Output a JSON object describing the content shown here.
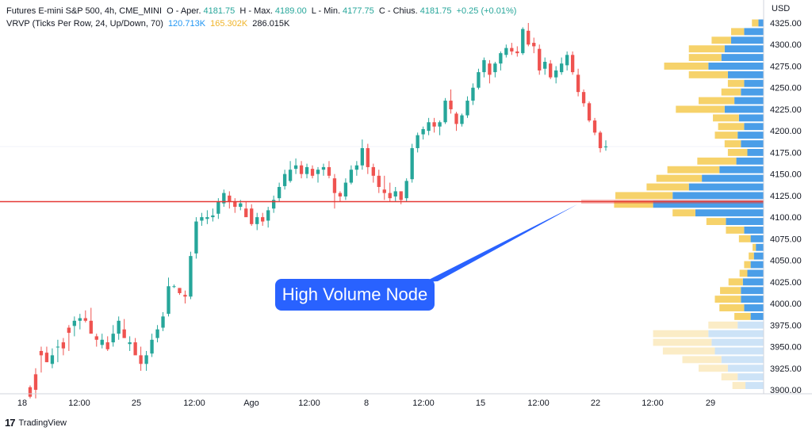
{
  "legend": {
    "symbol": "Futures E-mini S&P 500, 4h, CME_MINI",
    "open_label": "O - Aper.",
    "open_value": "4181.75",
    "high_label": "H - Max.",
    "high_value": "4189.00",
    "low_label": "L - Min.",
    "low_value": "4177.75",
    "close_label": "C - Chius.",
    "close_value": "4181.75",
    "change": "+0.25 (+0.01%)",
    "vrvp_label": "VRVP (Ticks Per Row, 24, Up/Down, 70)",
    "vrvp_up": "120.713K",
    "vrvp_down": "165.302K",
    "vrvp_total": "286.015K"
  },
  "currency_label": "USD",
  "callout_text": "High Volume Node",
  "brand": {
    "logo": "17",
    "name": "TradingView"
  },
  "colors": {
    "up_candle": "#26a69a",
    "down_candle": "#ef5350",
    "vp_up": "#4a9ee8",
    "vp_down": "#f6d26a",
    "vp_up_faded": "#cde3f7",
    "vp_down_faded": "#fbecc6",
    "hvn_line": "#e53935",
    "callout": "#2962ff"
  },
  "chart_data": {
    "type": "candlestick",
    "y_axis_ticks": [
      "4325.00",
      "4300.00",
      "4275.00",
      "4250.00",
      "4225.00",
      "4200.00",
      "4175.00",
      "4150.00",
      "4125.00",
      "4100.00",
      "4075.00",
      "4050.00",
      "4025.00",
      "4000.00",
      "3975.00",
      "3950.00",
      "3925.00",
      "3900.00"
    ],
    "ylim": [
      3895,
      4335
    ],
    "x_axis_ticks": [
      "18",
      "12:00",
      "25",
      "12:00",
      "Ago",
      "12:00",
      "8",
      "12:00",
      "15",
      "12:00",
      "22",
      "12:00",
      "29"
    ],
    "high_volume_node_price": 4118,
    "candles": [
      [
        3905,
        3890,
        3903,
        3892
      ],
      [
        3925,
        3890,
        3918,
        3900
      ],
      [
        3950,
        3920,
        3945,
        3940
      ],
      [
        3950,
        3932,
        3943,
        3932
      ],
      [
        3948,
        3925,
        3930,
        3940
      ],
      [
        3958,
        3932,
        3950,
        3950
      ],
      [
        3960,
        3940,
        3955,
        3948
      ],
      [
        3975,
        3945,
        3972,
        3966
      ],
      [
        3985,
        3962,
        3974,
        3980
      ],
      [
        3988,
        3970,
        3980,
        3983
      ],
      [
        3992,
        3978,
        3983,
        3980
      ],
      [
        3995,
        3975,
        3980,
        3965
      ],
      [
        3965,
        3950,
        3962,
        3958
      ],
      [
        3965,
        3948,
        3952,
        3958
      ],
      [
        3962,
        3945,
        3955,
        3947
      ],
      [
        3975,
        3950,
        3955,
        3965
      ],
      [
        3985,
        3958,
        3965,
        3980
      ],
      [
        3982,
        3960,
        3970,
        3960
      ],
      [
        3962,
        3945,
        3953,
        3955
      ],
      [
        3960,
        3945,
        3955,
        3940
      ],
      [
        3950,
        3922,
        3940,
        3930
      ],
      [
        3945,
        3922,
        3930,
        3940
      ],
      [
        3965,
        3938,
        3942,
        3958
      ],
      [
        3975,
        3955,
        3960,
        3970
      ],
      [
        3990,
        3968,
        3972,
        3985
      ],
      [
        4030,
        3985,
        3988,
        4020
      ],
      [
        4022,
        4018,
        4020,
        4020
      ],
      [
        4018,
        4010,
        4018,
        4012
      ],
      [
        4015,
        4000,
        4010,
        4008
      ],
      [
        4060,
        4005,
        4008,
        4055
      ],
      [
        4100,
        4052,
        4058,
        4095
      ],
      [
        4105,
        4090,
        4096,
        4100
      ],
      [
        4108,
        4092,
        4098,
        4100
      ],
      [
        4110,
        4095,
        4100,
        4102
      ],
      [
        4122,
        4098,
        4104,
        4118
      ],
      [
        4132,
        4112,
        4116,
        4128
      ],
      [
        4130,
        4110,
        4125,
        4118
      ],
      [
        4122,
        4105,
        4118,
        4112
      ],
      [
        4120,
        4108,
        4112,
        4116
      ],
      [
        4118,
        4108,
        4110,
        4100
      ],
      [
        4115,
        4090,
        4110,
        4092
      ],
      [
        4105,
        4085,
        4092,
        4100
      ],
      [
        4105,
        4090,
        4100,
        4095
      ],
      [
        4112,
        4088,
        4096,
        4108
      ],
      [
        4125,
        4105,
        4110,
        4120
      ],
      [
        4140,
        4118,
        4122,
        4135
      ],
      [
        4155,
        4132,
        4136,
        4150
      ],
      [
        4165,
        4140,
        4142,
        4155
      ],
      [
        4168,
        4150,
        4156,
        4160
      ],
      [
        4165,
        4145,
        4160,
        4150
      ],
      [
        4162,
        4145,
        4150,
        4158
      ],
      [
        4160,
        4145,
        4156,
        4148
      ],
      [
        4158,
        4140,
        4150,
        4155
      ],
      [
        4162,
        4148,
        4155,
        4158
      ],
      [
        4165,
        4145,
        4158,
        4148
      ],
      [
        4150,
        4110,
        4145,
        4128
      ],
      [
        4130,
        4118,
        4128,
        4124
      ],
      [
        4145,
        4120,
        4124,
        4140
      ],
      [
        4160,
        4138,
        4140,
        4155
      ],
      [
        4165,
        4148,
        4155,
        4160
      ],
      [
        4190,
        4155,
        4160,
        4180
      ],
      [
        4185,
        4150,
        4180,
        4158
      ],
      [
        4162,
        4140,
        4158,
        4148
      ],
      [
        4155,
        4128,
        4148,
        4135
      ],
      [
        4148,
        4120,
        4132,
        4128
      ],
      [
        4140,
        4118,
        4128,
        4122
      ],
      [
        4135,
        4118,
        4124,
        4130
      ],
      [
        4130,
        4115,
        4130,
        4120
      ],
      [
        4145,
        4118,
        4122,
        4142
      ],
      [
        4185,
        4140,
        4144,
        4180
      ],
      [
        4198,
        4175,
        4180,
        4195
      ],
      [
        4205,
        4190,
        4196,
        4202
      ],
      [
        4215,
        4195,
        4200,
        4210
      ],
      [
        4215,
        4198,
        4210,
        4205
      ],
      [
        4212,
        4195,
        4205,
        4210
      ],
      [
        4238,
        4208,
        4210,
        4235
      ],
      [
        4248,
        4220,
        4235,
        4225
      ],
      [
        4222,
        4200,
        4220,
        4208
      ],
      [
        4220,
        4205,
        4208,
        4218
      ],
      [
        4240,
        4215,
        4218,
        4235
      ],
      [
        4255,
        4230,
        4235,
        4250
      ],
      [
        4272,
        4248,
        4250,
        4268
      ],
      [
        4285,
        4262,
        4268,
        4282
      ],
      [
        4282,
        4255,
        4278,
        4265
      ],
      [
        4280,
        4262,
        4268,
        4278
      ],
      [
        4292,
        4270,
        4278,
        4290
      ],
      [
        4300,
        4285,
        4288,
        4296
      ],
      [
        4302,
        4288,
        4296,
        4292
      ],
      [
        4298,
        4286,
        4292,
        4290
      ],
      [
        4320,
        4288,
        4290,
        4318
      ],
      [
        4325,
        4298,
        4316,
        4300
      ],
      [
        4308,
        4290,
        4302,
        4298
      ],
      [
        4300,
        4265,
        4295,
        4270
      ],
      [
        4285,
        4265,
        4272,
        4280
      ],
      [
        4282,
        4260,
        4278,
        4262
      ],
      [
        4275,
        4255,
        4262,
        4270
      ],
      [
        4285,
        4265,
        4268,
        4278
      ],
      [
        4292,
        4270,
        4276,
        4288
      ],
      [
        4292,
        4265,
        4288,
        4268
      ],
      [
        4272,
        4240,
        4265,
        4245
      ],
      [
        4248,
        4228,
        4245,
        4232
      ],
      [
        4234,
        4210,
        4232,
        4212
      ],
      [
        4215,
        4195,
        4212,
        4198
      ],
      [
        4200,
        4175,
        4198,
        4180
      ],
      [
        4189,
        4177,
        4181,
        4182
      ]
    ],
    "volume_profile": [
      {
        "price_low": 4320,
        "price_high": 4330,
        "up": 8,
        "down": 10
      },
      {
        "price_low": 4310,
        "price_high": 4320,
        "up": 30,
        "down": 20
      },
      {
        "price_low": 4300,
        "price_high": 4310,
        "up": 50,
        "down": 30
      },
      {
        "price_low": 4290,
        "price_high": 4300,
        "up": 60,
        "down": 55
      },
      {
        "price_low": 4280,
        "price_high": 4290,
        "up": 65,
        "down": 50
      },
      {
        "price_low": 4270,
        "price_high": 4280,
        "up": 85,
        "down": 68
      },
      {
        "price_low": 4260,
        "price_high": 4270,
        "up": 55,
        "down": 60
      },
      {
        "price_low": 4250,
        "price_high": 4260,
        "up": 30,
        "down": 25
      },
      {
        "price_low": 4240,
        "price_high": 4250,
        "up": 35,
        "down": 30
      },
      {
        "price_low": 4230,
        "price_high": 4240,
        "up": 45,
        "down": 55
      },
      {
        "price_low": 4220,
        "price_high": 4230,
        "up": 60,
        "down": 75
      },
      {
        "price_low": 4210,
        "price_high": 4220,
        "up": 38,
        "down": 40
      },
      {
        "price_low": 4200,
        "price_high": 4210,
        "up": 30,
        "down": 40
      },
      {
        "price_low": 4190,
        "price_high": 4200,
        "up": 40,
        "down": 35
      },
      {
        "price_low": 4180,
        "price_high": 4190,
        "up": 35,
        "down": 25
      },
      {
        "price_low": 4170,
        "price_high": 4180,
        "up": 25,
        "down": 30
      },
      {
        "price_low": 4160,
        "price_high": 4170,
        "up": 42,
        "down": 60
      },
      {
        "price_low": 4150,
        "price_high": 4160,
        "up": 68,
        "down": 80
      },
      {
        "price_low": 4140,
        "price_high": 4150,
        "up": 95,
        "down": 70
      },
      {
        "price_low": 4130,
        "price_high": 4140,
        "up": 115,
        "down": 65
      },
      {
        "price_low": 4120,
        "price_high": 4130,
        "up": 140,
        "down": 88
      },
      {
        "price_low": 4110,
        "price_high": 4120,
        "up": 170,
        "down": 60
      },
      {
        "price_low": 4100,
        "price_high": 4110,
        "up": 105,
        "down": 35
      },
      {
        "price_low": 4090,
        "price_high": 4100,
        "up": 58,
        "down": 30
      },
      {
        "price_low": 4080,
        "price_high": 4090,
        "up": 30,
        "down": 28
      },
      {
        "price_low": 4070,
        "price_high": 4080,
        "up": 20,
        "down": 18
      },
      {
        "price_low": 4060,
        "price_high": 4070,
        "up": 12,
        "down": 5
      },
      {
        "price_low": 4050,
        "price_high": 4060,
        "up": 15,
        "down": 8
      },
      {
        "price_low": 4040,
        "price_high": 4050,
        "up": 20,
        "down": 10
      },
      {
        "price_low": 4030,
        "price_high": 4040,
        "up": 25,
        "down": 12
      },
      {
        "price_low": 4020,
        "price_high": 4030,
        "up": 32,
        "down": 22
      },
      {
        "price_low": 4010,
        "price_high": 4020,
        "up": 35,
        "down": 32
      },
      {
        "price_low": 4000,
        "price_high": 4010,
        "up": 35,
        "down": 40
      },
      {
        "price_low": 3990,
        "price_high": 4000,
        "up": 30,
        "down": 38
      },
      {
        "price_low": 3980,
        "price_high": 3990,
        "up": 20,
        "down": 25
      },
      {
        "price_low": 3970,
        "price_high": 3980,
        "up": 40,
        "down": 45,
        "faded": true
      },
      {
        "price_low": 3960,
        "price_high": 3970,
        "up": 85,
        "down": 85,
        "faded": true
      },
      {
        "price_low": 3950,
        "price_high": 3960,
        "up": 80,
        "down": 90,
        "faded": true
      },
      {
        "price_low": 3940,
        "price_high": 3950,
        "up": 75,
        "down": 80,
        "faded": true
      },
      {
        "price_low": 3930,
        "price_high": 3940,
        "up": 65,
        "down": 60,
        "faded": true
      },
      {
        "price_low": 3920,
        "price_high": 3930,
        "up": 55,
        "down": 45,
        "faded": true
      },
      {
        "price_low": 3910,
        "price_high": 3920,
        "up": 40,
        "down": 25,
        "faded": true
      },
      {
        "price_low": 3900,
        "price_high": 3910,
        "up": 28,
        "down": 20,
        "faded": true
      }
    ]
  }
}
